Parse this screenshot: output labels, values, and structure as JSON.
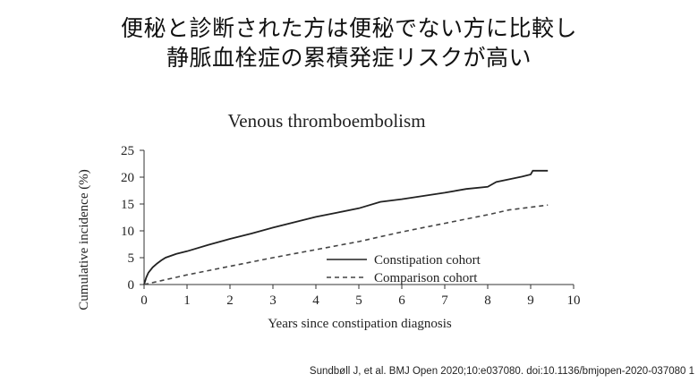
{
  "slide": {
    "headline_line1": "便秘と診断された方は便秘でない方に比較し",
    "headline_line2": "静脈血栓症の累積発症リスクが高い",
    "citation": "Sundbøll J, et al. BMJ Open 2020;10:e037080.  doi:10.1136/bmjopen-2020-037080 1"
  },
  "chart_data": {
    "type": "line",
    "title": "Venous thromboembolism",
    "xlabel": "Years since constipation diagnosis",
    "ylabel": "Cumulative incidence (%)",
    "xlim": [
      0,
      10
    ],
    "ylim": [
      0,
      25
    ],
    "xticks": [
      "0",
      "1",
      "2",
      "3",
      "4",
      "5",
      "6",
      "7",
      "8",
      "9",
      "10"
    ],
    "yticks": [
      "0",
      "5",
      "10",
      "15",
      "20",
      "25"
    ],
    "grid": false,
    "legend_position": "bottom-right",
    "series": [
      {
        "name": "Constipation cohort",
        "style": "solid",
        "color": "#222222",
        "points": [
          [
            0,
            0
          ],
          [
            0.05,
            1.3
          ],
          [
            0.1,
            2.2
          ],
          [
            0.2,
            3.2
          ],
          [
            0.3,
            3.9
          ],
          [
            0.4,
            4.5
          ],
          [
            0.5,
            5.0
          ],
          [
            0.75,
            5.7
          ],
          [
            1,
            6.2
          ],
          [
            1.5,
            7.4
          ],
          [
            2,
            8.5
          ],
          [
            2.5,
            9.5
          ],
          [
            3,
            10.6
          ],
          [
            3.5,
            11.6
          ],
          [
            4,
            12.6
          ],
          [
            4.5,
            13.4
          ],
          [
            5,
            14.2
          ],
          [
            5.5,
            15.4
          ],
          [
            6,
            15.9
          ],
          [
            6.5,
            16.5
          ],
          [
            7,
            17.1
          ],
          [
            7.5,
            17.8
          ],
          [
            8,
            18.2
          ],
          [
            8.2,
            19.1
          ],
          [
            8.5,
            19.6
          ],
          [
            8.8,
            20.1
          ],
          [
            9.0,
            20.5
          ],
          [
            9.05,
            21.2
          ],
          [
            9.4,
            21.2
          ]
        ]
      },
      {
        "name": "Comparison cohort",
        "style": "dashed",
        "color": "#444444",
        "points": [
          [
            0,
            0
          ],
          [
            1,
            1.8
          ],
          [
            2,
            3.4
          ],
          [
            3,
            5.0
          ],
          [
            4,
            6.5
          ],
          [
            5,
            8.0
          ],
          [
            6,
            9.8
          ],
          [
            7,
            11.4
          ],
          [
            8,
            13.0
          ],
          [
            8.5,
            13.9
          ],
          [
            9,
            14.4
          ],
          [
            9.4,
            14.8
          ]
        ]
      }
    ]
  }
}
